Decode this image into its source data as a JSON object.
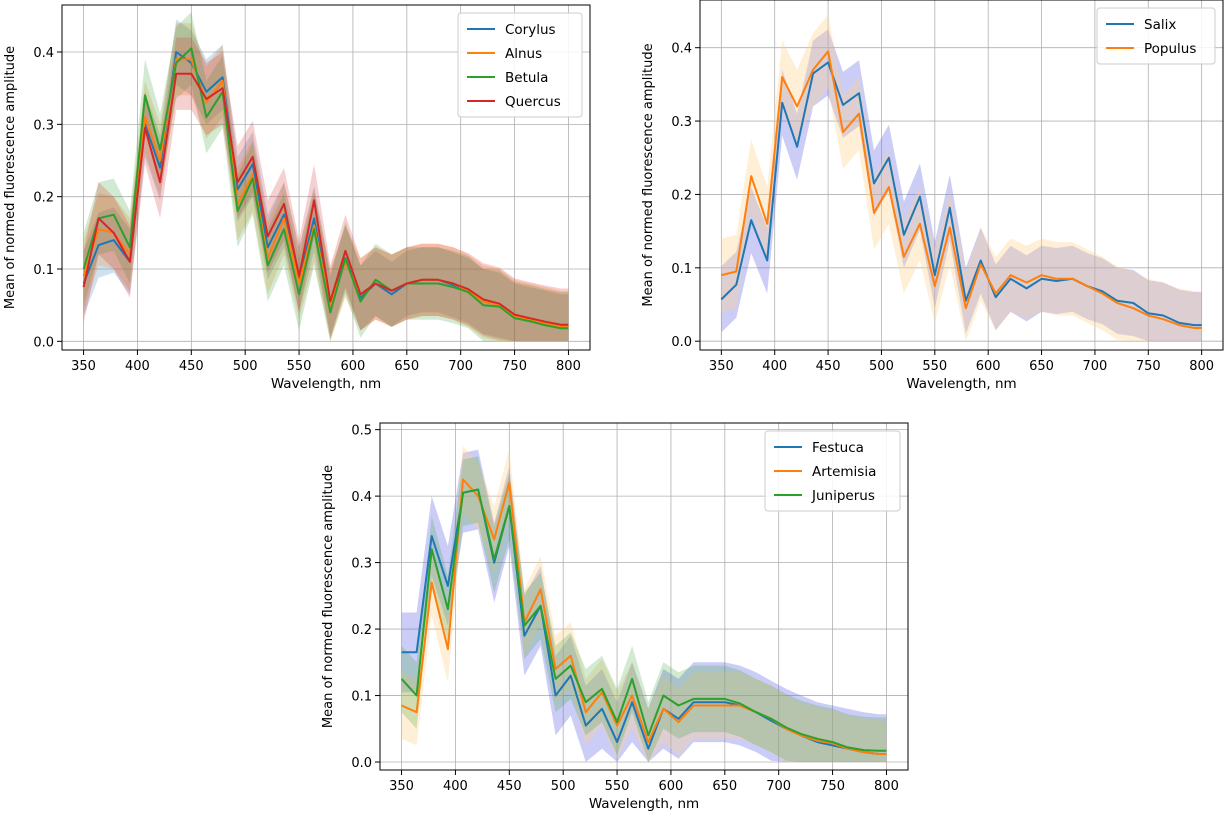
{
  "colors": {
    "C0": "#1f77b4",
    "C1": "#ff7f0e",
    "C2": "#2ca02c",
    "C3": "#d62728",
    "band_blue": "#6a70e8",
    "band_orange": "#ffd28a"
  },
  "chart_data": [
    {
      "type": "line",
      "title": "",
      "xlabel": "Wavelength, nm",
      "ylabel": "Mean of normed fluorescence amplitude",
      "xlim": [
        330,
        820
      ],
      "ylim": [
        -0.012,
        0.465
      ],
      "xticks": [
        350,
        400,
        450,
        500,
        550,
        600,
        650,
        700,
        750,
        800
      ],
      "yticks": [
        0.0,
        0.1,
        0.2,
        0.3,
        0.4
      ],
      "ytick_labels": [
        "0.0",
        "0.1",
        "0.2",
        "0.3",
        "0.4"
      ],
      "grid": true,
      "legend_position": "top-right",
      "shaded_band": "mean ± spread per series",
      "x": [
        350,
        364,
        378,
        393,
        407,
        421,
        436,
        450,
        464,
        479,
        493,
        507,
        521,
        536,
        550,
        564,
        579,
        593,
        607,
        621,
        636,
        650,
        664,
        679,
        693,
        707,
        721,
        736,
        750,
        764,
        779,
        793,
        800
      ],
      "series": [
        {
          "name": "Corylus",
          "color": "C0",
          "band": 0.045,
          "values": [
            0.08,
            0.133,
            0.14,
            0.11,
            0.3,
            0.24,
            0.4,
            0.385,
            0.345,
            0.365,
            0.21,
            0.245,
            0.13,
            0.175,
            0.085,
            0.17,
            0.05,
            0.115,
            0.06,
            0.08,
            0.065,
            0.08,
            0.085,
            0.085,
            0.078,
            0.07,
            0.055,
            0.05,
            0.035,
            0.03,
            0.025,
            0.02,
            0.02
          ]
        },
        {
          "name": "Alnus",
          "color": "C1",
          "band": 0.05,
          "values": [
            0.09,
            0.155,
            0.15,
            0.12,
            0.31,
            0.25,
            0.39,
            0.39,
            0.33,
            0.36,
            0.19,
            0.23,
            0.115,
            0.17,
            0.08,
            0.16,
            0.05,
            0.11,
            0.065,
            0.08,
            0.07,
            0.08,
            0.085,
            0.085,
            0.08,
            0.07,
            0.055,
            0.05,
            0.035,
            0.03,
            0.025,
            0.02,
            0.02
          ]
        },
        {
          "name": "Betula",
          "color": "C2",
          "band": 0.05,
          "values": [
            0.1,
            0.17,
            0.175,
            0.13,
            0.34,
            0.265,
            0.385,
            0.405,
            0.31,
            0.345,
            0.18,
            0.225,
            0.105,
            0.155,
            0.065,
            0.155,
            0.04,
            0.115,
            0.055,
            0.085,
            0.07,
            0.08,
            0.08,
            0.08,
            0.075,
            0.068,
            0.05,
            0.048,
            0.032,
            0.028,
            0.022,
            0.018,
            0.018
          ]
        },
        {
          "name": "Quercus",
          "color": "C3",
          "band": 0.05,
          "values": [
            0.075,
            0.17,
            0.15,
            0.11,
            0.295,
            0.22,
            0.37,
            0.37,
            0.335,
            0.35,
            0.22,
            0.255,
            0.145,
            0.19,
            0.09,
            0.195,
            0.055,
            0.125,
            0.065,
            0.08,
            0.07,
            0.08,
            0.085,
            0.085,
            0.08,
            0.072,
            0.058,
            0.052,
            0.037,
            0.032,
            0.027,
            0.023,
            0.023
          ]
        }
      ]
    },
    {
      "type": "line",
      "title": "",
      "xlabel": "Wavelength, nm",
      "ylabel": "Mean of normed fluorescence amplitude",
      "xlim": [
        330,
        820
      ],
      "ylim": [
        -0.012,
        0.465
      ],
      "xticks": [
        350,
        400,
        450,
        500,
        550,
        600,
        650,
        700,
        750,
        800
      ],
      "yticks": [
        0.0,
        0.1,
        0.2,
        0.3,
        0.4
      ],
      "ytick_labels": [
        "0.0",
        "0.1",
        "0.2",
        "0.3",
        "0.4"
      ],
      "grid": true,
      "legend_position": "top-right",
      "shaded_band": "mean ± spread per series",
      "x": [
        350,
        364,
        378,
        393,
        407,
        421,
        436,
        450,
        464,
        479,
        493,
        507,
        521,
        536,
        550,
        564,
        579,
        593,
        607,
        621,
        636,
        650,
        664,
        679,
        693,
        707,
        721,
        736,
        750,
        764,
        779,
        793,
        800
      ],
      "series": [
        {
          "name": "Salix",
          "color": "C0",
          "band": 0.045,
          "band_color": "band_blue",
          "values": [
            0.057,
            0.077,
            0.165,
            0.11,
            0.325,
            0.265,
            0.365,
            0.38,
            0.322,
            0.338,
            0.215,
            0.25,
            0.145,
            0.197,
            0.09,
            0.182,
            0.055,
            0.11,
            0.06,
            0.085,
            0.072,
            0.085,
            0.082,
            0.085,
            0.075,
            0.068,
            0.055,
            0.052,
            0.038,
            0.035,
            0.025,
            0.022,
            0.022
          ]
        },
        {
          "name": "Populus",
          "color": "C1",
          "band": 0.05,
          "band_color": "band_orange",
          "values": [
            0.09,
            0.095,
            0.225,
            0.16,
            0.36,
            0.32,
            0.37,
            0.395,
            0.285,
            0.31,
            0.175,
            0.21,
            0.115,
            0.16,
            0.075,
            0.155,
            0.045,
            0.105,
            0.065,
            0.09,
            0.08,
            0.09,
            0.085,
            0.085,
            0.075,
            0.065,
            0.052,
            0.045,
            0.035,
            0.03,
            0.022,
            0.018,
            0.018
          ]
        }
      ]
    },
    {
      "type": "line",
      "title": "",
      "xlabel": "Wavelength, nm",
      "ylabel": "Mean of normed fluorescence amplitude",
      "xlim": [
        330,
        820
      ],
      "ylim": [
        -0.012,
        0.51
      ],
      "xticks": [
        350,
        400,
        450,
        500,
        550,
        600,
        650,
        700,
        750,
        800
      ],
      "yticks": [
        0.0,
        0.1,
        0.2,
        0.3,
        0.4,
        0.5
      ],
      "ytick_labels": [
        "0.0",
        "0.1",
        "0.2",
        "0.3",
        "0.4",
        "0.5"
      ],
      "grid": true,
      "legend_position": "top-right",
      "shaded_band": "mean ± spread per series",
      "x": [
        350,
        364,
        378,
        393,
        407,
        421,
        436,
        450,
        464,
        479,
        493,
        507,
        521,
        536,
        550,
        564,
        579,
        593,
        607,
        621,
        636,
        650,
        664,
        679,
        693,
        707,
        721,
        736,
        750,
        764,
        779,
        793,
        800
      ],
      "series": [
        {
          "name": "Festuca",
          "color": "C0",
          "band": 0.06,
          "band_color": "band_blue",
          "values": [
            0.165,
            0.165,
            0.34,
            0.265,
            0.405,
            0.41,
            0.3,
            0.385,
            0.19,
            0.235,
            0.1,
            0.13,
            0.055,
            0.08,
            0.03,
            0.09,
            0.02,
            0.08,
            0.065,
            0.09,
            0.09,
            0.09,
            0.085,
            0.075,
            0.062,
            0.05,
            0.04,
            0.03,
            0.025,
            0.02,
            0.015,
            0.012,
            0.012
          ]
        },
        {
          "name": "Artemisia",
          "color": "C1",
          "band": 0.05,
          "band_color": "band_orange",
          "values": [
            0.085,
            0.075,
            0.27,
            0.17,
            0.425,
            0.4,
            0.335,
            0.42,
            0.21,
            0.26,
            0.14,
            0.16,
            0.075,
            0.105,
            0.055,
            0.1,
            0.03,
            0.08,
            0.06,
            0.085,
            0.085,
            0.085,
            0.085,
            0.075,
            0.065,
            0.05,
            0.04,
            0.032,
            0.028,
            0.02,
            0.015,
            0.012,
            0.012
          ]
        },
        {
          "name": "Juniperus",
          "color": "C2",
          "band": 0.05,
          "values": [
            0.125,
            0.1,
            0.32,
            0.23,
            0.405,
            0.41,
            0.305,
            0.385,
            0.205,
            0.235,
            0.125,
            0.145,
            0.09,
            0.11,
            0.06,
            0.125,
            0.04,
            0.1,
            0.085,
            0.095,
            0.095,
            0.095,
            0.088,
            0.075,
            0.065,
            0.052,
            0.042,
            0.035,
            0.03,
            0.022,
            0.018,
            0.017,
            0.017
          ]
        }
      ]
    }
  ]
}
